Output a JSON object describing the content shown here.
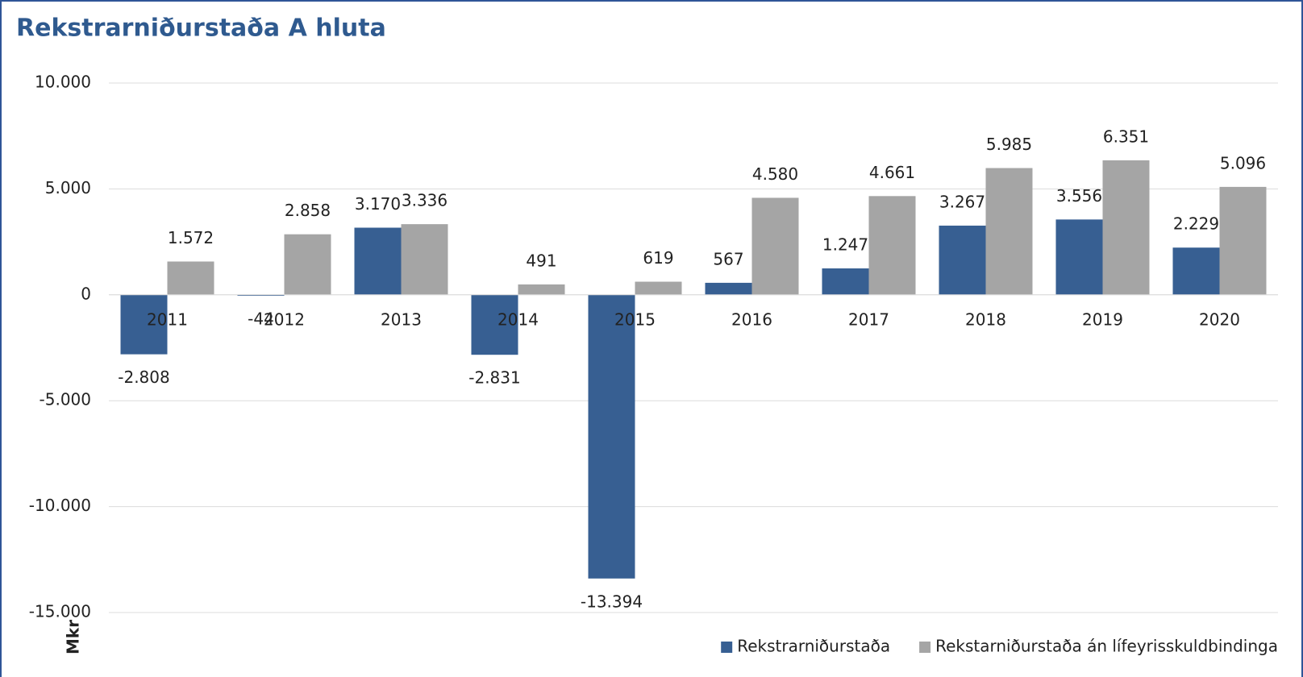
{
  "chart_data": {
    "type": "bar",
    "title": "Rekstrarniðurstaða A hluta",
    "ylabel": "Mkr",
    "categories": [
      "2011",
      "2012",
      "2013",
      "2014",
      "2015",
      "2016",
      "2017",
      "2018",
      "2019",
      "2020"
    ],
    "series": [
      {
        "name": "Rekstrarniðurstaða",
        "color": "#375f92",
        "values": [
          -2808,
          -44,
          3170,
          -2831,
          -13394,
          567,
          1247,
          3267,
          3556,
          2229
        ],
        "value_labels": [
          "-2.808",
          "-44",
          "3.170",
          "-2.831",
          "-13.394",
          "567",
          "1.247",
          "3.267",
          "3.556",
          "2.229"
        ]
      },
      {
        "name": "Rekstarniðurstaða án lífeyrisskuldbindinga",
        "color": "#a5a5a5",
        "values": [
          1572,
          2858,
          3336,
          491,
          619,
          4580,
          4661,
          5985,
          6351,
          5096
        ],
        "value_labels": [
          "1.572",
          "2.858",
          "3.336",
          "491",
          "619",
          "4.580",
          "4.661",
          "5.985",
          "6.351",
          "5.096"
        ]
      }
    ],
    "ylim": [
      -15000,
      10000
    ],
    "yticks": [
      {
        "value": -15000,
        "label": "-15.000"
      },
      {
        "value": -10000,
        "label": "-10.000"
      },
      {
        "value": -5000,
        "label": "-5.000"
      },
      0,
      {
        "value": 5000,
        "label": "5.000"
      },
      {
        "value": 10000,
        "label": "10.000"
      }
    ],
    "grid": true,
    "legend": "bottom-right"
  }
}
